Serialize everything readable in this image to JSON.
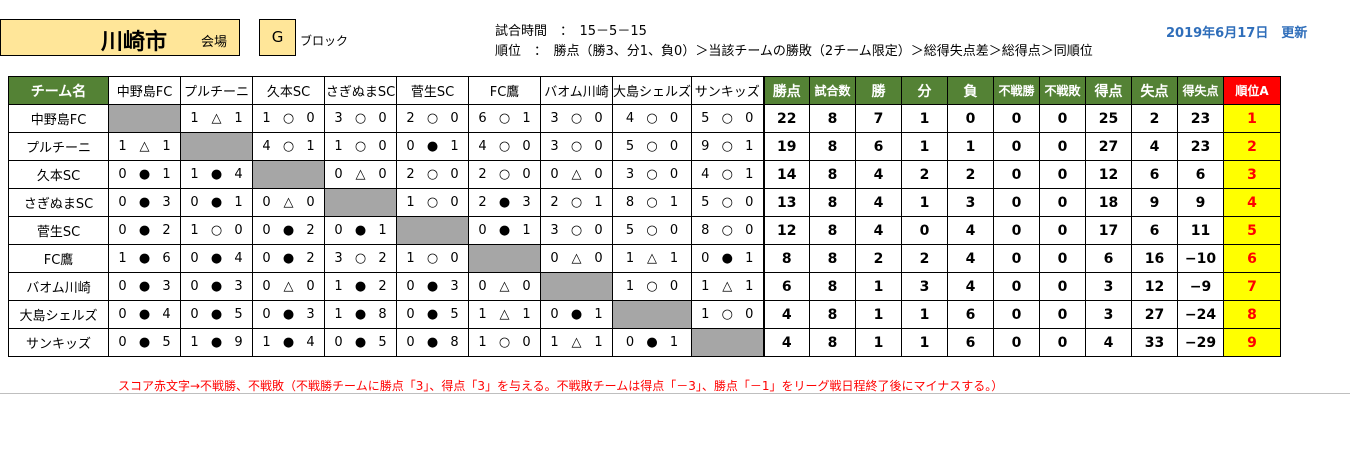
{
  "header": {
    "city": "川崎市",
    "venue_label": "会場",
    "block": "G",
    "block_label": "ブロック",
    "match_time": "試合時間　：　15－5－15",
    "ranking_rule": "順位　：　勝点（勝3、分1、負0）＞当該チームの勝敗（2チーム限定）＞総得失点差＞総得点＞同順位",
    "updated": "2019年6月17日　更新"
  },
  "table": {
    "team_header": "チーム名",
    "opponent_headers": [
      "中野島FC",
      "プルチーニ",
      "久本SC",
      "さぎぬまSC",
      "菅生SC",
      "FC鷹",
      "バオム川崎",
      "大島シェルズ",
      "サンキッズ"
    ],
    "stat_headers": [
      "勝点",
      "試合数",
      "勝",
      "分",
      "負",
      "不戦勝",
      "不戦敗",
      "得点",
      "失点",
      "得失点",
      "順位A"
    ],
    "rows": [
      {
        "team": "中野島FC",
        "results": [
          null,
          [
            "1",
            "△",
            "1"
          ],
          [
            "1",
            "○",
            "0"
          ],
          [
            "3",
            "○",
            "0"
          ],
          [
            "2",
            "○",
            "0"
          ],
          [
            "6",
            "○",
            "1"
          ],
          [
            "3",
            "○",
            "0"
          ],
          [
            "4",
            "○",
            "0"
          ],
          [
            "5",
            "○",
            "0"
          ]
        ],
        "stats": [
          "22",
          "8",
          "7",
          "1",
          "0",
          "0",
          "0",
          "25",
          "2",
          "23",
          "1"
        ]
      },
      {
        "team": "プルチーニ",
        "results": [
          [
            "1",
            "△",
            "1"
          ],
          null,
          [
            "4",
            "○",
            "1"
          ],
          [
            "1",
            "○",
            "0"
          ],
          [
            "0",
            "●",
            "1"
          ],
          [
            "4",
            "○",
            "0"
          ],
          [
            "3",
            "○",
            "0"
          ],
          [
            "5",
            "○",
            "0"
          ],
          [
            "9",
            "○",
            "1"
          ]
        ],
        "stats": [
          "19",
          "8",
          "6",
          "1",
          "1",
          "0",
          "0",
          "27",
          "4",
          "23",
          "2"
        ]
      },
      {
        "team": "久本SC",
        "results": [
          [
            "0",
            "●",
            "1"
          ],
          [
            "1",
            "●",
            "4"
          ],
          null,
          [
            "0",
            "△",
            "0"
          ],
          [
            "2",
            "○",
            "0"
          ],
          [
            "2",
            "○",
            "0"
          ],
          [
            "0",
            "△",
            "0"
          ],
          [
            "3",
            "○",
            "0"
          ],
          [
            "4",
            "○",
            "1"
          ]
        ],
        "stats": [
          "14",
          "8",
          "4",
          "2",
          "2",
          "0",
          "0",
          "12",
          "6",
          "6",
          "3"
        ]
      },
      {
        "team": "さぎぬまSC",
        "results": [
          [
            "0",
            "●",
            "3"
          ],
          [
            "0",
            "●",
            "1"
          ],
          [
            "0",
            "△",
            "0"
          ],
          null,
          [
            "1",
            "○",
            "0"
          ],
          [
            "2",
            "●",
            "3"
          ],
          [
            "2",
            "○",
            "1"
          ],
          [
            "8",
            "○",
            "1"
          ],
          [
            "5",
            "○",
            "0"
          ]
        ],
        "stats": [
          "13",
          "8",
          "4",
          "1",
          "3",
          "0",
          "0",
          "18",
          "9",
          "9",
          "4"
        ]
      },
      {
        "team": "菅生SC",
        "results": [
          [
            "0",
            "●",
            "2"
          ],
          [
            "1",
            "○",
            "0"
          ],
          [
            "0",
            "●",
            "2"
          ],
          [
            "0",
            "●",
            "1"
          ],
          null,
          [
            "0",
            "●",
            "1"
          ],
          [
            "3",
            "○",
            "0"
          ],
          [
            "5",
            "○",
            "0"
          ],
          [
            "8",
            "○",
            "0"
          ]
        ],
        "stats": [
          "12",
          "8",
          "4",
          "0",
          "4",
          "0",
          "0",
          "17",
          "6",
          "11",
          "5"
        ]
      },
      {
        "team": "FC鷹",
        "results": [
          [
            "1",
            "●",
            "6"
          ],
          [
            "0",
            "●",
            "4"
          ],
          [
            "0",
            "●",
            "2"
          ],
          [
            "3",
            "○",
            "2"
          ],
          [
            "1",
            "○",
            "0"
          ],
          null,
          [
            "0",
            "△",
            "0"
          ],
          [
            "1",
            "△",
            "1"
          ],
          [
            "0",
            "●",
            "1"
          ]
        ],
        "stats": [
          "8",
          "8",
          "2",
          "2",
          "4",
          "0",
          "0",
          "6",
          "16",
          "−10",
          "6"
        ]
      },
      {
        "team": "バオム川崎",
        "results": [
          [
            "0",
            "●",
            "3"
          ],
          [
            "0",
            "●",
            "3"
          ],
          [
            "0",
            "△",
            "0"
          ],
          [
            "1",
            "●",
            "2"
          ],
          [
            "0",
            "●",
            "3"
          ],
          [
            "0",
            "△",
            "0"
          ],
          null,
          [
            "1",
            "○",
            "0"
          ],
          [
            "1",
            "△",
            "1"
          ]
        ],
        "stats": [
          "6",
          "8",
          "1",
          "3",
          "4",
          "0",
          "0",
          "3",
          "12",
          "−9",
          "7"
        ]
      },
      {
        "team": "大島シェルズ",
        "results": [
          [
            "0",
            "●",
            "4"
          ],
          [
            "0",
            "●",
            "5"
          ],
          [
            "0",
            "●",
            "3"
          ],
          [
            "1",
            "●",
            "8"
          ],
          [
            "0",
            "●",
            "5"
          ],
          [
            "1",
            "△",
            "1"
          ],
          [
            "0",
            "●",
            "1"
          ],
          null,
          [
            "1",
            "○",
            "0"
          ]
        ],
        "stats": [
          "4",
          "8",
          "1",
          "1",
          "6",
          "0",
          "0",
          "3",
          "27",
          "−24",
          "8"
        ]
      },
      {
        "team": "サンキッズ",
        "results": [
          [
            "0",
            "●",
            "5"
          ],
          [
            "1",
            "●",
            "9"
          ],
          [
            "1",
            "●",
            "4"
          ],
          [
            "0",
            "●",
            "5"
          ],
          [
            "0",
            "●",
            "8"
          ],
          [
            "1",
            "○",
            "0"
          ],
          [
            "1",
            "△",
            "1"
          ],
          [
            "0",
            "●",
            "1"
          ],
          null
        ],
        "stats": [
          "4",
          "8",
          "1",
          "1",
          "6",
          "0",
          "0",
          "4",
          "33",
          "−29",
          "9"
        ]
      }
    ]
  },
  "note": "スコア赤文字→不戦勝、不戦敗（不戦勝チームに勝点「3」、得点「3」を与える。不戦敗チームは得点「－3」、勝点「－1」をリーグ戦日程終了後にマイナスする。）",
  "colors": {
    "header_green": "#548235",
    "title_fill": "#ffe699",
    "rank_fill": "#ffff00",
    "rank_text": "#ff0000",
    "self_match": "#a6a6a6"
  }
}
